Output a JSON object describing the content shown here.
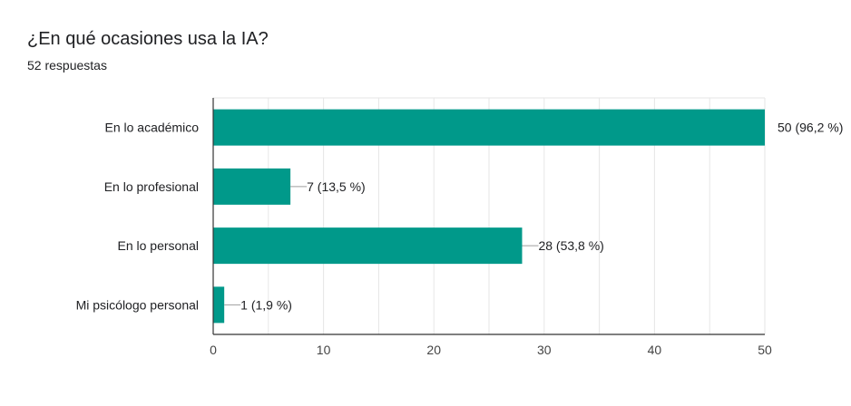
{
  "header": {
    "title": "¿En qué ocasiones usa la IA?",
    "responses": "52 respuestas"
  },
  "colors": {
    "bar": "#00998A",
    "grid": "#e6e6e6",
    "axis": "#333333",
    "leader": "#9e9e9e"
  },
  "chart_data": {
    "type": "bar",
    "orientation": "horizontal",
    "categories": [
      "En lo académico",
      "En lo profesional",
      "En lo personal",
      "Mi psicólogo personal"
    ],
    "values": [
      50,
      7,
      28,
      1
    ],
    "data_labels": [
      "50 (96,2 %)",
      "7 (13,5 %)",
      "28 (53,8 %)",
      "1 (1,9 %)"
    ],
    "xticks": [
      0,
      10,
      20,
      30,
      40,
      50
    ],
    "xlim": [
      0,
      50
    ],
    "grid": true,
    "title": "¿En qué ocasiones usa la IA?",
    "subtitle": "52 respuestas"
  }
}
